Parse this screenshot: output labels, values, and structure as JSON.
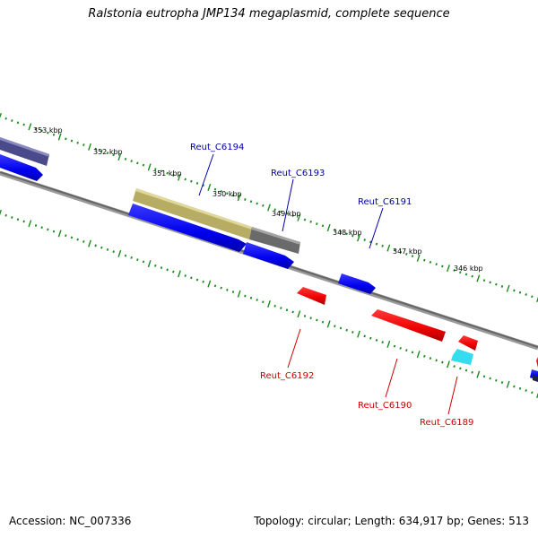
{
  "title": "Ralstonia eutropha JMP134 megaplasmid, complete sequence",
  "accession_label": "Accession: NC_007336",
  "summary_label": "Topology: circular; Length: 634,917 bp; Genes: 513",
  "scale": {
    "unit": "kbp",
    "ticks": [
      {
        "label": "353 kbp"
      },
      {
        "label": "352 kbp"
      },
      {
        "label": "351 kbp"
      },
      {
        "label": "350 kbp"
      },
      {
        "label": "349 kbp"
      },
      {
        "label": "348 kbp"
      },
      {
        "label": "347 kbp"
      },
      {
        "label": "346 kbp"
      }
    ]
  },
  "gene_labels": {
    "forward": [
      {
        "name": "Reut_C6194",
        "color": "#0000aa"
      },
      {
        "name": "Reut_C6193",
        "color": "#0000aa"
      },
      {
        "name": "Reut_C6191",
        "color": "#0000aa"
      }
    ],
    "reverse": [
      {
        "name": "Reut_C6192",
        "color": "#cc0000"
      },
      {
        "name": "Reut_C6190",
        "color": "#cc0000"
      },
      {
        "name": "Reut_C6189",
        "color": "#cc0000"
      }
    ]
  },
  "colors": {
    "backbone": "#7a7a7a",
    "tick": "#1a8a1a",
    "forward_gene": "#0000ee",
    "reverse_gene": "#ee0000",
    "cog_olive": "#b7ac63",
    "cog_gray": "#6a6a6a",
    "cog_slate": "#4a4a8a",
    "cyan_gene": "#33ddee"
  }
}
